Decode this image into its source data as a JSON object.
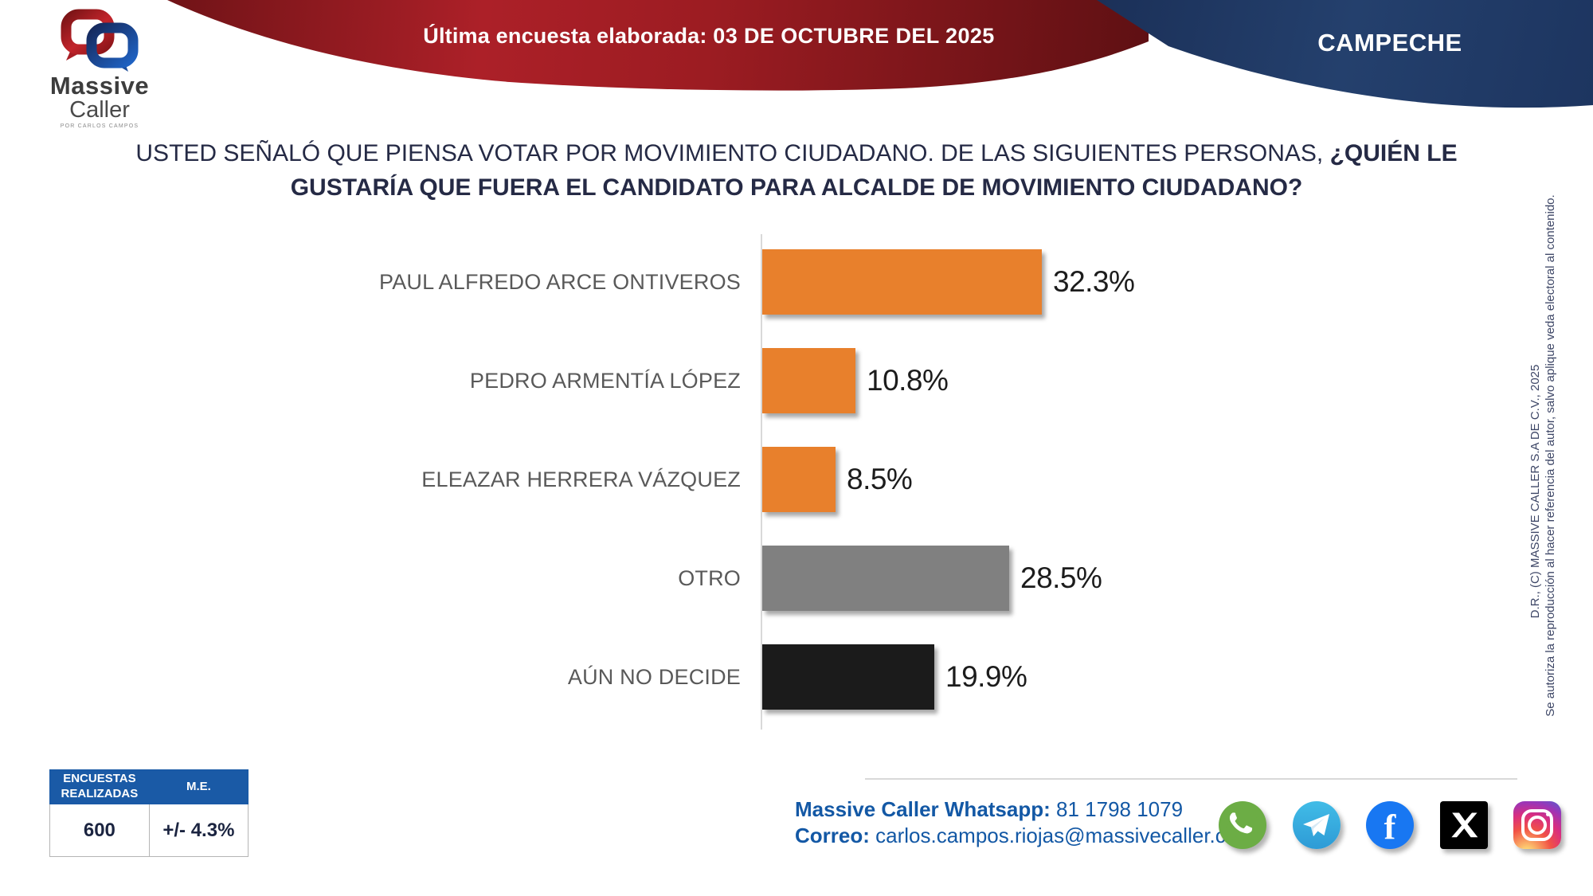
{
  "header": {
    "banner_label": "Última encuesta elaborada:",
    "banner_date": "03 DE OCTUBRE DEL 2025",
    "region": "CAMPECHE",
    "banner_red_gradient": [
      "#701317",
      "#ac2028",
      "#9c1c22",
      "#5e1013"
    ],
    "banner_blue_gradient": [
      "#1b3058",
      "#24406d",
      "#1d3560"
    ]
  },
  "logo": {
    "line1": "Massive",
    "line2": "Caller",
    "tagline": "POR CARLOS CAMPOS"
  },
  "question": {
    "normal": "USTED SEÑALÓ QUE PIENSA VOTAR POR MOVIMIENTO CIUDADANO. DE LAS SIGUIENTES PERSONAS, ",
    "bold": "¿QUIÉN LE GUSTARÍA QUE FUERA EL CANDIDATO PARA ALCALDE DE MOVIMIENTO CIUDADANO?"
  },
  "chart_data": {
    "type": "bar",
    "orientation": "horizontal",
    "categories": [
      "PAUL ALFREDO ARCE ONTIVEROS",
      "PEDRO ARMENTÍA LÓPEZ",
      "ELEAZAR HERRERA VÁZQUEZ",
      "OTRO",
      "AÚN NO DECIDE"
    ],
    "values": [
      32.3,
      10.8,
      8.5,
      28.5,
      19.9
    ],
    "value_labels": [
      "32.3%",
      "10.8%",
      "8.5%",
      "28.5%",
      "19.9%"
    ],
    "bar_colors": [
      "#e8802c",
      "#e8802c",
      "#e8802c",
      "#808080",
      "#1b1b1b"
    ],
    "title": "",
    "xlabel": "",
    "ylabel": "",
    "xlim": [
      0,
      36
    ],
    "grid": false,
    "legend": false,
    "value_label_position": "right-of-bar"
  },
  "stats_table": {
    "headers": [
      "ENCUESTAS REALIZADAS",
      "M.E."
    ],
    "values": [
      "600",
      "+/- 4.3%"
    ]
  },
  "contact": {
    "whatsapp_label": "Massive Caller Whatsapp:",
    "whatsapp_value": " 81 1798 1079",
    "email_label": "Correo:",
    "email_value": " carlos.campos.riojas@massivecaller.com"
  },
  "social_icons": [
    {
      "name": "whatsapp"
    },
    {
      "name": "telegram"
    },
    {
      "name": "facebook"
    },
    {
      "name": "x-twitter"
    },
    {
      "name": "instagram"
    }
  ],
  "side_note": {
    "copyright": "D.R., (C) MASSIVE CALLER S.A DE C.V., 2025",
    "disclaimer": "Se autoriza la reproducción al hacer referencia del autor, salvo aplique veda electoral al contenido."
  },
  "facebook_glyph": "f"
}
